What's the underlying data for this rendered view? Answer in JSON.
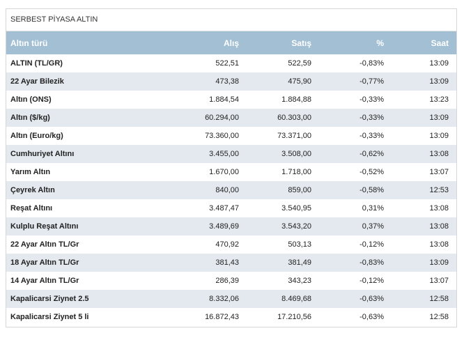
{
  "panel": {
    "title": "SERBEST PİYASA ALTIN"
  },
  "table": {
    "headers": {
      "name": "Altın türü",
      "alis": "Alış",
      "satis": "Satış",
      "yuzde": "%",
      "saat": "Saat"
    },
    "rows": [
      {
        "name": "ALTIN (TL/GR)",
        "alis": "522,51",
        "satis": "522,59",
        "yuzde": "-0,83%",
        "saat": "13:09"
      },
      {
        "name": "22 Ayar Bilezik",
        "alis": "473,38",
        "satis": "475,90",
        "yuzde": "-0,77%",
        "saat": "13:09"
      },
      {
        "name": "Altın (ONS)",
        "alis": "1.884,54",
        "satis": "1.884,88",
        "yuzde": "-0,33%",
        "saat": "13:23"
      },
      {
        "name": "Altın ($/kg)",
        "alis": "60.294,00",
        "satis": "60.303,00",
        "yuzde": "-0,33%",
        "saat": "13:09"
      },
      {
        "name": "Altın (Euro/kg)",
        "alis": "73.360,00",
        "satis": "73.371,00",
        "yuzde": "-0,33%",
        "saat": "13:09"
      },
      {
        "name": "Cumhuriyet Altını",
        "alis": "3.455,00",
        "satis": "3.508,00",
        "yuzde": "-0,62%",
        "saat": "13:08"
      },
      {
        "name": "Yarım Altın",
        "alis": "1.670,00",
        "satis": "1.718,00",
        "yuzde": "-0,52%",
        "saat": "13:07"
      },
      {
        "name": "Çeyrek Altın",
        "alis": "840,00",
        "satis": "859,00",
        "yuzde": "-0,58%",
        "saat": "12:53"
      },
      {
        "name": "Reşat Altını",
        "alis": "3.487,47",
        "satis": "3.540,95",
        "yuzde": "0,31%",
        "saat": "13:08"
      },
      {
        "name": "Kulplu Reşat Altını",
        "alis": "3.489,69",
        "satis": "3.543,20",
        "yuzde": "0,37%",
        "saat": "13:08"
      },
      {
        "name": "22 Ayar Altın TL/Gr",
        "alis": "470,92",
        "satis": "503,13",
        "yuzde": "-0,12%",
        "saat": "13:08"
      },
      {
        "name": "18 Ayar Altın TL/Gr",
        "alis": "381,43",
        "satis": "381,49",
        "yuzde": "-0,83%",
        "saat": "13:09"
      },
      {
        "name": "14 Ayar Altın TL/Gr",
        "alis": "286,39",
        "satis": "343,23",
        "yuzde": "-0,12%",
        "saat": "13:07"
      },
      {
        "name": "Kapalicarsi Ziynet 2.5",
        "alis": "8.332,06",
        "satis": "8.469,68",
        "yuzde": "-0,63%",
        "saat": "12:58"
      },
      {
        "name": "Kapalicarsi Ziynet 5 li",
        "alis": "16.872,43",
        "satis": "17.210,56",
        "yuzde": "-0,63%",
        "saat": "12:58"
      }
    ]
  }
}
